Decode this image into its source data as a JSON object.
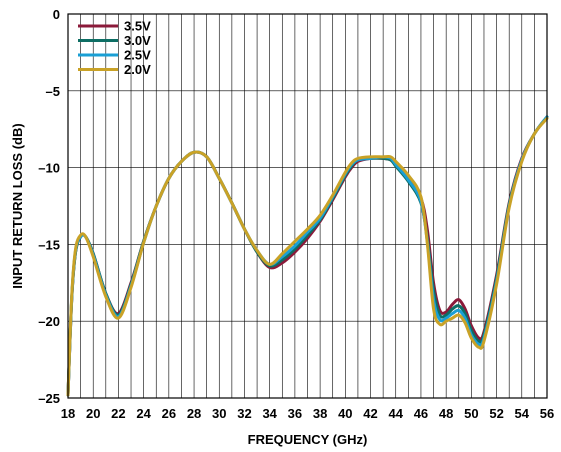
{
  "chart_data": {
    "type": "line",
    "xlabel": "FREQUENCY (GHz)",
    "ylabel": "INPUT RETURN LOSS (dB)",
    "xlim": [
      18,
      56
    ],
    "ylim": [
      -25,
      0
    ],
    "x_ticks": [
      18,
      20,
      22,
      24,
      26,
      28,
      30,
      32,
      34,
      36,
      38,
      40,
      42,
      44,
      46,
      48,
      50,
      52,
      54,
      56
    ],
    "x_tick_labels": [
      "18",
      "20",
      "22",
      "24",
      "26",
      "28",
      "30",
      "32",
      "34",
      "36",
      "38",
      "40",
      "42",
      "44",
      "46",
      "48",
      "50",
      "52",
      "54",
      "56"
    ],
    "y_ticks": [
      0,
      -5,
      -10,
      -15,
      -20,
      -25
    ],
    "y_tick_labels": [
      "0",
      "–5",
      "–10",
      "–15",
      "–20",
      "–25"
    ],
    "grid": true,
    "legend_position": "top-left",
    "series": [
      {
        "name": "3.5V",
        "color": "#8b1a3a",
        "x": [
          18,
          18.3,
          18.6,
          19,
          19.4,
          20,
          21,
          22,
          23,
          24,
          25,
          26,
          27,
          28,
          29,
          30,
          31,
          32,
          33,
          34,
          35,
          36,
          37,
          38,
          39,
          40,
          40.5,
          41,
          42,
          43,
          43.6,
          44,
          45,
          46,
          46.5,
          47,
          47.5,
          48,
          48.5,
          49,
          49.5,
          50,
          50.6,
          51,
          52,
          53,
          54,
          55,
          56
        ],
        "y": [
          -24.8,
          -18.5,
          -15.5,
          -14.5,
          -14.5,
          -15.6,
          -18.2,
          -19.5,
          -17.5,
          -14.8,
          -12.5,
          -10.7,
          -9.6,
          -9.0,
          -9.3,
          -10.7,
          -12.3,
          -14.0,
          -15.5,
          -16.5,
          -16.2,
          -15.5,
          -14.6,
          -13.5,
          -12.1,
          -10.6,
          -10.0,
          -9.6,
          -9.4,
          -9.4,
          -9.5,
          -9.8,
          -10.7,
          -12.0,
          -14.0,
          -17.5,
          -19.3,
          -19.4,
          -18.9,
          -18.6,
          -19.2,
          -20.3,
          -21.1,
          -20.7,
          -17.0,
          -12.3,
          -9.4,
          -7.8,
          -6.7
        ]
      },
      {
        "name": "3.0V",
        "color": "#0e6e64",
        "x": [
          18,
          18.3,
          18.6,
          19,
          19.4,
          20,
          21,
          22,
          23,
          24,
          25,
          26,
          27,
          28,
          29,
          30,
          31,
          32,
          33,
          34,
          35,
          36,
          37,
          38,
          39,
          40,
          40.5,
          41,
          42,
          43,
          43.6,
          44,
          45,
          46,
          46.5,
          47,
          47.5,
          48,
          48.5,
          49,
          49.5,
          50,
          50.6,
          51,
          52,
          53,
          54,
          55,
          56
        ],
        "y": [
          -24.8,
          -18.5,
          -15.5,
          -14.5,
          -14.5,
          -15.6,
          -18.2,
          -19.6,
          -17.6,
          -14.8,
          -12.5,
          -10.7,
          -9.6,
          -9.0,
          -9.3,
          -10.7,
          -12.3,
          -14.0,
          -15.5,
          -16.4,
          -16.0,
          -15.3,
          -14.4,
          -13.4,
          -12.0,
          -10.5,
          -9.9,
          -9.5,
          -9.4,
          -9.4,
          -9.5,
          -9.9,
          -10.9,
          -12.3,
          -14.6,
          -18.0,
          -19.6,
          -19.6,
          -19.2,
          -19.0,
          -19.5,
          -20.6,
          -21.3,
          -20.9,
          -17.2,
          -12.4,
          -9.5,
          -7.8,
          -6.7
        ]
      },
      {
        "name": "2.5V",
        "color": "#1a9fd4",
        "x": [
          18,
          18.3,
          18.6,
          19,
          19.4,
          20,
          21,
          22,
          23,
          24,
          25,
          26,
          27,
          28,
          29,
          30,
          31,
          32,
          33,
          34,
          35,
          36,
          37,
          38,
          39,
          40,
          40.5,
          41,
          42,
          43,
          43.6,
          44,
          45,
          46,
          46.5,
          47,
          47.5,
          48,
          48.5,
          49,
          49.5,
          50,
          50.6,
          51,
          52,
          53,
          54,
          55,
          56
        ],
        "y": [
          -24.8,
          -18.4,
          -15.4,
          -14.5,
          -14.5,
          -15.7,
          -18.3,
          -19.7,
          -17.7,
          -14.9,
          -12.5,
          -10.7,
          -9.6,
          -9.0,
          -9.3,
          -10.7,
          -12.3,
          -14.0,
          -15.4,
          -16.3,
          -15.8,
          -15.1,
          -14.2,
          -13.3,
          -11.9,
          -10.4,
          -9.8,
          -9.5,
          -9.4,
          -9.3,
          -9.4,
          -9.8,
          -10.8,
          -12.2,
          -14.8,
          -18.6,
          -19.9,
          -19.8,
          -19.5,
          -19.3,
          -19.8,
          -20.9,
          -21.5,
          -21.1,
          -17.4,
          -12.5,
          -9.5,
          -7.8,
          -6.7
        ]
      },
      {
        "name": "2.0V",
        "color": "#c9a227",
        "x": [
          18,
          18.3,
          18.6,
          19,
          19.4,
          20,
          21,
          22,
          23,
          24,
          25,
          26,
          27,
          28,
          29,
          30,
          31,
          32,
          33,
          34,
          35,
          36,
          37,
          38,
          39,
          40,
          40.5,
          41,
          42,
          43,
          43.6,
          44,
          45,
          46,
          46.5,
          47,
          47.5,
          48,
          48.5,
          49,
          49.5,
          50,
          50.6,
          51,
          52,
          53,
          54,
          55,
          56
        ],
        "y": [
          -24.8,
          -18.3,
          -15.3,
          -14.4,
          -14.5,
          -15.8,
          -18.4,
          -19.8,
          -17.8,
          -14.9,
          -12.5,
          -10.7,
          -9.6,
          -9.0,
          -9.3,
          -10.7,
          -12.3,
          -14.0,
          -15.4,
          -16.3,
          -15.6,
          -14.8,
          -14.0,
          -13.1,
          -11.8,
          -10.3,
          -9.7,
          -9.4,
          -9.3,
          -9.3,
          -9.3,
          -9.6,
          -10.5,
          -11.9,
          -14.9,
          -19.2,
          -20.2,
          -20.0,
          -19.8,
          -19.6,
          -20.1,
          -21.1,
          -21.7,
          -21.3,
          -17.6,
          -12.6,
          -9.6,
          -7.8,
          -6.8
        ]
      }
    ]
  }
}
